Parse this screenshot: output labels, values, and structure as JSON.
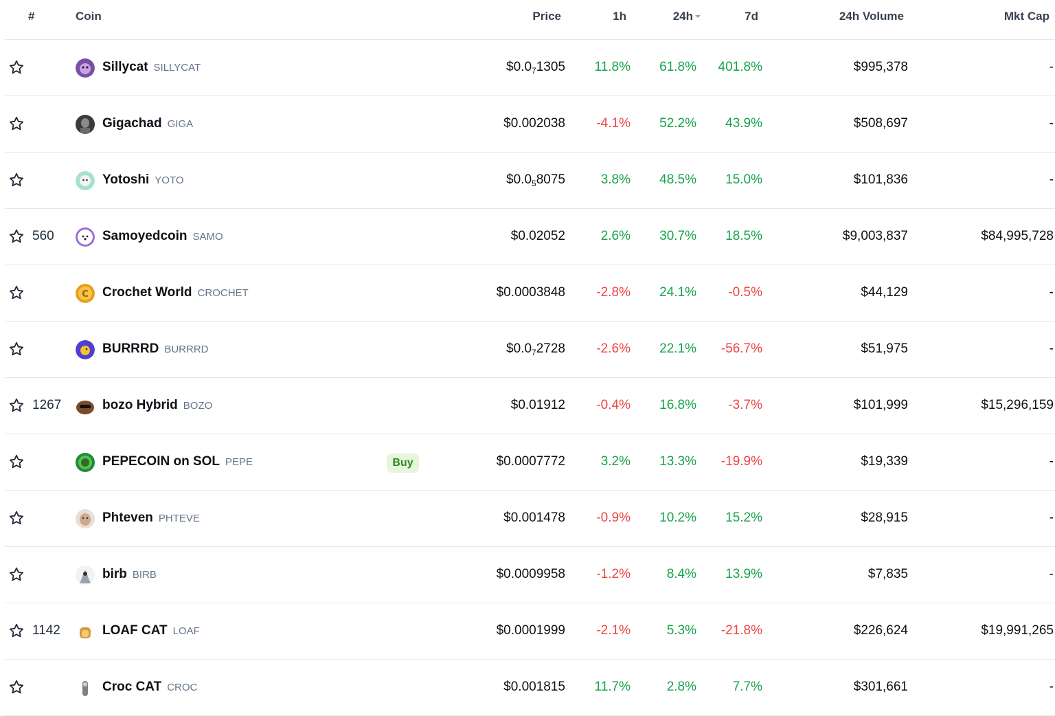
{
  "header": {
    "rank": "#",
    "coin": "Coin",
    "price": "Price",
    "h1": "1h",
    "h24": "24h",
    "d7": "7d",
    "volume": "24h Volume",
    "mcap": "Mkt Cap"
  },
  "colors": {
    "up": "#16a34a",
    "down": "#ef4444",
    "buy_bg": "#e5f6dc",
    "buy_text": "#2f8a1f"
  },
  "buy_label": "Buy",
  "rows": [
    {
      "rank": "",
      "name": "Sillycat",
      "symbol": "SILLYCAT",
      "price_prefix": "$0.0",
      "price_sub": "7",
      "price_rest": "1305",
      "h1": "11.8%",
      "h24": "61.8%",
      "d7": "401.8%",
      "volume": "$995,378",
      "mcap": "-",
      "logo": "sillycat-logo"
    },
    {
      "rank": "",
      "name": "Gigachad",
      "symbol": "GIGA",
      "price_prefix": "$0.002038",
      "price_sub": "",
      "price_rest": "",
      "h1": "-4.1%",
      "h24": "52.2%",
      "d7": "43.9%",
      "volume": "$508,697",
      "mcap": "-",
      "logo": "gigachad-logo"
    },
    {
      "rank": "",
      "name": "Yotoshi",
      "symbol": "YOTO",
      "price_prefix": "$0.0",
      "price_sub": "5",
      "price_rest": "8075",
      "h1": "3.8%",
      "h24": "48.5%",
      "d7": "15.0%",
      "volume": "$101,836",
      "mcap": "-",
      "logo": "yotoshi-logo"
    },
    {
      "rank": "560",
      "name": "Samoyedcoin",
      "symbol": "SAMO",
      "price_prefix": "$0.02052",
      "price_sub": "",
      "price_rest": "",
      "h1": "2.6%",
      "h24": "30.7%",
      "d7": "18.5%",
      "volume": "$9,003,837",
      "mcap": "$84,995,728",
      "logo": "samoyedcoin-logo"
    },
    {
      "rank": "",
      "name": "Crochet World",
      "symbol": "CROCHET",
      "price_prefix": "$0.0003848",
      "price_sub": "",
      "price_rest": "",
      "h1": "-2.8%",
      "h24": "24.1%",
      "d7": "-0.5%",
      "volume": "$44,129",
      "mcap": "-",
      "logo": "crochet-world-logo"
    },
    {
      "rank": "",
      "name": "BURRRD",
      "symbol": "BURRRD",
      "price_prefix": "$0.0",
      "price_sub": "7",
      "price_rest": "2728",
      "h1": "-2.6%",
      "h24": "22.1%",
      "d7": "-56.7%",
      "volume": "$51,975",
      "mcap": "-",
      "logo": "burrrd-logo"
    },
    {
      "rank": "1267",
      "name": "bozo Hybrid",
      "symbol": "BOZO",
      "price_prefix": "$0.01912",
      "price_sub": "",
      "price_rest": "",
      "h1": "-0.4%",
      "h24": "16.8%",
      "d7": "-3.7%",
      "volume": "$101,999",
      "mcap": "$15,296,159",
      "logo": "bozo-hybrid-logo"
    },
    {
      "rank": "",
      "name": "PEPECOIN on SOL",
      "symbol": "PEPE",
      "price_prefix": "$0.0007772",
      "price_sub": "",
      "price_rest": "",
      "h1": "3.2%",
      "h24": "13.3%",
      "d7": "-19.9%",
      "volume": "$19,339",
      "mcap": "-",
      "logo": "pepecoin-logo",
      "buy": true
    },
    {
      "rank": "",
      "name": "Phteven",
      "symbol": "PHTEVE",
      "price_prefix": "$0.001478",
      "price_sub": "",
      "price_rest": "",
      "h1": "-0.9%",
      "h24": "10.2%",
      "d7": "15.2%",
      "volume": "$28,915",
      "mcap": "-",
      "logo": "phteven-logo"
    },
    {
      "rank": "",
      "name": "birb",
      "symbol": "BIRB",
      "price_prefix": "$0.0009958",
      "price_sub": "",
      "price_rest": "",
      "h1": "-1.2%",
      "h24": "8.4%",
      "d7": "13.9%",
      "volume": "$7,835",
      "mcap": "-",
      "logo": "birb-logo"
    },
    {
      "rank": "1142",
      "name": "LOAF CAT",
      "symbol": "LOAF",
      "price_prefix": "$0.0001999",
      "price_sub": "",
      "price_rest": "",
      "h1": "-2.1%",
      "h24": "5.3%",
      "d7": "-21.8%",
      "volume": "$226,624",
      "mcap": "$19,991,265",
      "logo": "loaf-cat-logo"
    },
    {
      "rank": "",
      "name": "Croc CAT",
      "symbol": "CROC",
      "price_prefix": "$0.001815",
      "price_sub": "",
      "price_rest": "",
      "h1": "11.7%",
      "h24": "2.8%",
      "d7": "7.7%",
      "volume": "$301,661",
      "mcap": "-",
      "logo": "croc-cat-logo"
    }
  ]
}
